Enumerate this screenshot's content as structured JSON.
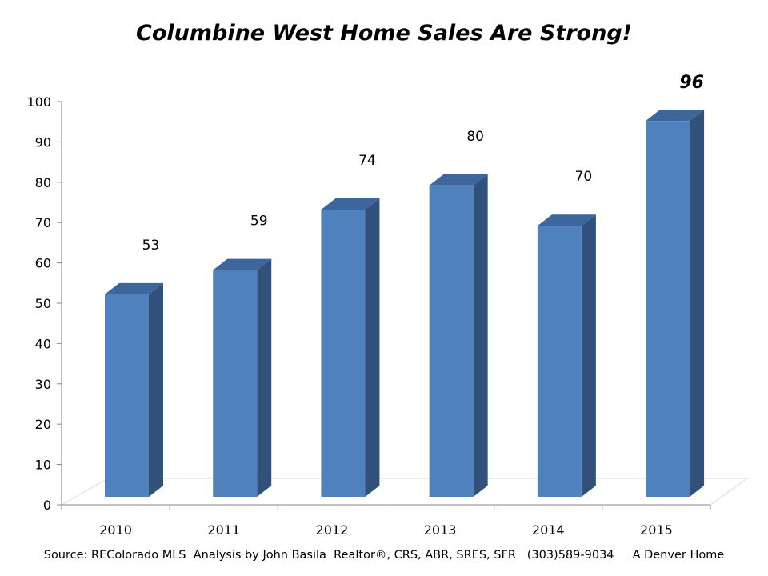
{
  "chart_data": {
    "type": "bar",
    "title": "Columbine West Home Sales Are Strong!",
    "categories": [
      "2010",
      "2011",
      "2012",
      "2013",
      "2014",
      "2015"
    ],
    "values": [
      53,
      59,
      74,
      80,
      70,
      96
    ],
    "data_labels": [
      "53",
      "59",
      "74",
      "80",
      "70",
      "96"
    ],
    "emphasized_label_index": 5,
    "ylim": [
      0,
      100
    ],
    "yticks": [
      "0",
      "10",
      "20",
      "30",
      "40",
      "50",
      "60",
      "70",
      "80",
      "90",
      "100"
    ],
    "xlabel": "",
    "ylabel": "",
    "grid": false,
    "legend": "none",
    "style": "3d-column"
  },
  "colors": {
    "bar_front": "#4f81bd",
    "bar_side": "#31507a",
    "bar_top": "#3d679c",
    "axis": "#868686"
  },
  "footer": {
    "source": "Source: REColorado MLS  Analysis by John Basila  Realtor®, CRS, ABR, SRES, SFR   (303)589-9034     A Denver Home"
  }
}
